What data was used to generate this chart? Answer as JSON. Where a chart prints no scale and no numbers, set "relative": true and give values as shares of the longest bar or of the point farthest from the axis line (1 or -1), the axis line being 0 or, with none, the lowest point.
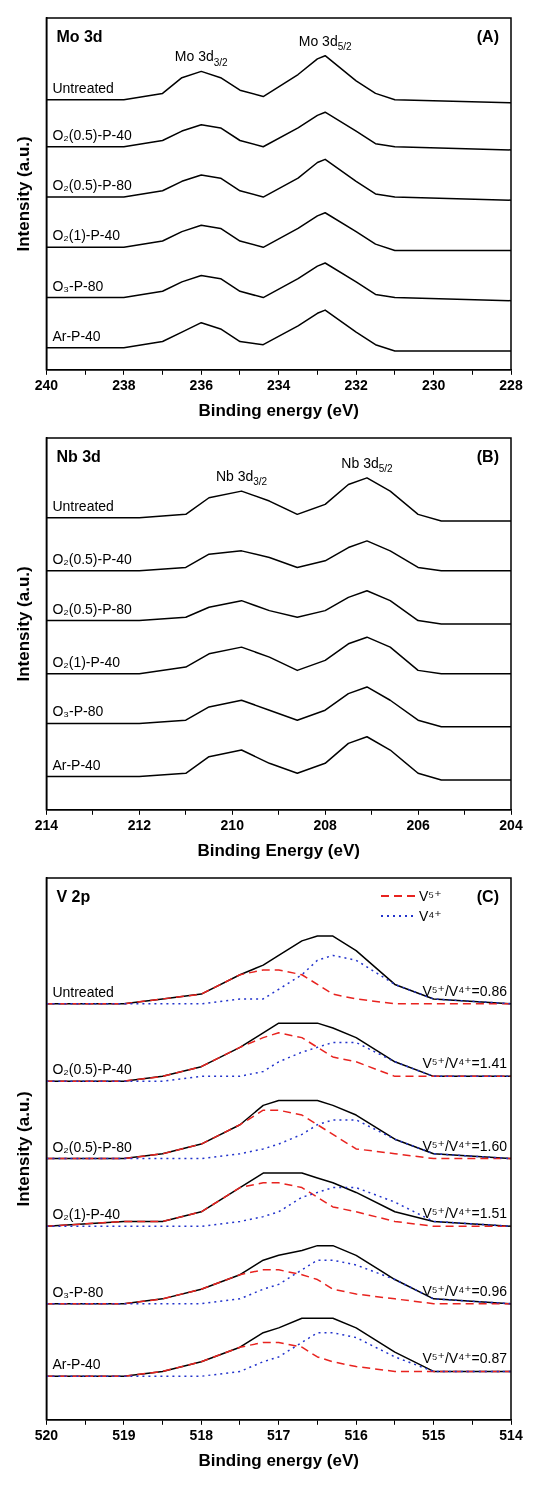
{
  "chart_data": [
    {
      "type": "line",
      "relative": true,
      "title": "Mo 3d",
      "xlabel": "Binding energy (eV)",
      "ylabel": "Intensity (a.u.)",
      "xlim": [
        240,
        228
      ],
      "xticks": [
        240,
        238,
        236,
        234,
        232,
        230,
        228,
        {
          "value": 239,
          "label": null
        },
        {
          "value": 237,
          "label": null
        },
        {
          "value": 235,
          "label": null
        },
        {
          "value": 233,
          "label": null
        },
        {
          "value": 231,
          "label": null
        },
        {
          "value": 229,
          "label": null
        }
      ],
      "x": [
        240,
        238,
        237,
        236.5,
        236,
        235.5,
        235,
        234.4,
        233.5,
        233,
        232.8,
        232,
        231.5,
        231,
        228
      ],
      "annotations": [
        "(A)",
        "Mo 3d$_{3/2}$",
        "Mo 3d$_{5/2}$"
      ],
      "series": [
        {
          "name": "Untreated",
          "color": "#000000",
          "values": [
            0.86,
            0.86,
            0.88,
            0.93,
            0.95,
            0.93,
            0.89,
            0.87,
            0.94,
            0.99,
            1.0,
            0.92,
            0.88,
            0.86,
            0.85
          ]
        },
        {
          "name": "O₂(0.5)-P-40",
          "color": "#000000",
          "values": [
            0.71,
            0.71,
            0.73,
            0.76,
            0.78,
            0.77,
            0.73,
            0.71,
            0.77,
            0.81,
            0.82,
            0.76,
            0.72,
            0.71,
            0.7
          ]
        },
        {
          "name": "O₂(0.5)-P-80",
          "color": "#000000",
          "values": [
            0.55,
            0.55,
            0.57,
            0.6,
            0.62,
            0.61,
            0.57,
            0.55,
            0.61,
            0.66,
            0.67,
            0.6,
            0.56,
            0.55,
            0.54
          ]
        },
        {
          "name": "O₂(1)-P-40",
          "color": "#000000",
          "values": [
            0.39,
            0.39,
            0.41,
            0.44,
            0.46,
            0.45,
            0.41,
            0.39,
            0.45,
            0.49,
            0.5,
            0.44,
            0.4,
            0.38,
            0.38
          ]
        },
        {
          "name": "O₃-P-80",
          "color": "#000000",
          "values": [
            0.23,
            0.23,
            0.25,
            0.28,
            0.3,
            0.29,
            0.25,
            0.23,
            0.29,
            0.33,
            0.34,
            0.28,
            0.24,
            0.23,
            0.22
          ]
        },
        {
          "name": "Ar-P-40",
          "color": "#000000",
          "values": [
            0.07,
            0.07,
            0.09,
            0.12,
            0.15,
            0.13,
            0.09,
            0.08,
            0.14,
            0.18,
            0.19,
            0.12,
            0.08,
            0.06,
            0.06
          ]
        }
      ]
    },
    {
      "type": "line",
      "relative": true,
      "title": "Nb 3d",
      "xlabel": "Binding Energy (eV)",
      "ylabel": "Intensity (a.u.)",
      "xlim": [
        214,
        204
      ],
      "xticks": [
        214,
        212,
        210,
        208,
        206,
        204,
        {
          "value": 213,
          "label": null
        },
        {
          "value": 211,
          "label": null
        },
        {
          "value": 209,
          "label": null
        },
        {
          "value": 207,
          "label": null
        },
        {
          "value": 205,
          "label": null
        }
      ],
      "x": [
        214,
        212,
        211,
        210.5,
        209.8,
        209.2,
        208.6,
        208,
        207.5,
        207.1,
        206.6,
        206,
        205.5,
        204
      ],
      "annotations": [
        "(B)",
        "Nb 3d$_{3/2}$",
        "Nb 3d$_{5/2}$"
      ],
      "series": [
        {
          "name": "Untreated",
          "color": "#000000",
          "values": [
            0.88,
            0.88,
            0.89,
            0.94,
            0.96,
            0.93,
            0.89,
            0.92,
            0.98,
            1.0,
            0.96,
            0.89,
            0.87,
            0.87
          ]
        },
        {
          "name": "O₂(0.5)-P-40",
          "color": "#000000",
          "values": [
            0.72,
            0.72,
            0.73,
            0.77,
            0.78,
            0.76,
            0.73,
            0.75,
            0.79,
            0.81,
            0.78,
            0.73,
            0.72,
            0.72
          ]
        },
        {
          "name": "O₂(0.5)-P-80",
          "color": "#000000",
          "values": [
            0.57,
            0.57,
            0.58,
            0.61,
            0.63,
            0.6,
            0.58,
            0.6,
            0.64,
            0.66,
            0.63,
            0.57,
            0.56,
            0.56
          ]
        },
        {
          "name": "O₂(1)-P-40",
          "color": "#000000",
          "values": [
            0.41,
            0.41,
            0.43,
            0.47,
            0.49,
            0.46,
            0.42,
            0.45,
            0.5,
            0.52,
            0.49,
            0.42,
            0.41,
            0.41
          ]
        },
        {
          "name": "O₃-P-80",
          "color": "#000000",
          "values": [
            0.26,
            0.26,
            0.27,
            0.31,
            0.33,
            0.3,
            0.27,
            0.3,
            0.35,
            0.37,
            0.33,
            0.27,
            0.25,
            0.25
          ]
        },
        {
          "name": "Ar-P-40",
          "color": "#000000",
          "values": [
            0.1,
            0.1,
            0.11,
            0.16,
            0.18,
            0.14,
            0.11,
            0.14,
            0.2,
            0.22,
            0.18,
            0.11,
            0.09,
            0.09
          ]
        }
      ]
    },
    {
      "type": "line",
      "relative": true,
      "title": "V 2p",
      "xlabel": "Binding energy (eV)",
      "ylabel": "Intensity (a.u.)",
      "legend": "top right",
      "xlim": [
        520,
        514
      ],
      "xticks": [
        520,
        519,
        518,
        517,
        516,
        515,
        514,
        {
          "value": 519.5,
          "label": null
        },
        {
          "value": 518.5,
          "label": null
        },
        {
          "value": 517.5,
          "label": null
        },
        {
          "value": 516.5,
          "label": null
        },
        {
          "value": 515.5,
          "label": null
        },
        {
          "value": 514.5,
          "label": null
        }
      ],
      "x": [
        520,
        519,
        518.5,
        518,
        517.5,
        517.2,
        517,
        516.7,
        516.5,
        516.3,
        516,
        515.5,
        515,
        514
      ],
      "annotations": [
        "(C)",
        "V⁵⁺/V⁴⁺=0.86",
        "V⁵⁺/V⁴⁺=1.41",
        "V⁵⁺/V⁴⁺=1.60",
        "V⁵⁺/V⁴⁺=1.51",
        "V⁵⁺/V⁴⁺=0.96",
        "V⁵⁺/V⁴⁺=0.87"
      ],
      "series": [
        {
          "name": "Untreated",
          "color": "#000000",
          "values": [
            0.86,
            0.86,
            0.87,
            0.88,
            0.92,
            0.94,
            0.96,
            0.99,
            1.0,
            1.0,
            0.97,
            0.9,
            0.87,
            0.86
          ]
        },
        {
          "name": "V⁵⁺",
          "color": "#e8231f",
          "line_style": "dashed",
          "values": [
            0.86,
            0.86,
            0.87,
            0.88,
            0.92,
            0.93,
            0.93,
            0.92,
            0.9,
            0.88,
            0.87,
            0.86,
            0.86,
            0.86
          ]
        },
        {
          "name": "V⁴⁺",
          "color": "#2233cc",
          "line_style": "dotted",
          "values": [
            0.86,
            0.86,
            0.86,
            0.86,
            0.87,
            0.87,
            0.89,
            0.92,
            0.95,
            0.96,
            0.95,
            0.9,
            0.87,
            0.86
          ]
        },
        {
          "name": "O₂(0.5)-P-40",
          "color": "#000000",
          "values": [
            0.7,
            0.7,
            0.71,
            0.73,
            0.77,
            0.8,
            0.82,
            0.82,
            0.82,
            0.81,
            0.79,
            0.74,
            0.71,
            0.71
          ]
        },
        {
          "color": "#e8231f",
          "line_style": "dashed",
          "values": [
            0.7,
            0.7,
            0.71,
            0.73,
            0.77,
            0.79,
            0.8,
            0.79,
            0.77,
            0.75,
            0.74,
            0.71,
            0.71,
            0.71
          ]
        },
        {
          "color": "#2233cc",
          "line_style": "dotted",
          "values": [
            0.7,
            0.7,
            0.7,
            0.71,
            0.71,
            0.72,
            0.74,
            0.76,
            0.77,
            0.78,
            0.78,
            0.74,
            0.71,
            0.71
          ]
        },
        {
          "name": "O₂(0.5)-P-80",
          "color": "#000000",
          "values": [
            0.54,
            0.54,
            0.55,
            0.57,
            0.61,
            0.65,
            0.66,
            0.66,
            0.66,
            0.65,
            0.63,
            0.58,
            0.55,
            0.54
          ]
        },
        {
          "color": "#e8231f",
          "line_style": "dashed",
          "values": [
            0.54,
            0.54,
            0.55,
            0.57,
            0.61,
            0.64,
            0.64,
            0.63,
            0.61,
            0.59,
            0.56,
            0.55,
            0.54,
            0.54
          ]
        },
        {
          "color": "#2233cc",
          "line_style": "dotted",
          "values": [
            0.54,
            0.54,
            0.54,
            0.54,
            0.55,
            0.56,
            0.57,
            0.59,
            0.61,
            0.62,
            0.62,
            0.58,
            0.55,
            0.54
          ]
        },
        {
          "name": "O₂(1)-P-40",
          "color": "#000000",
          "values": [
            0.4,
            0.41,
            0.41,
            0.43,
            0.48,
            0.51,
            0.51,
            0.51,
            0.5,
            0.49,
            0.47,
            0.43,
            0.41,
            0.4
          ]
        },
        {
          "color": "#e8231f",
          "line_style": "dashed",
          "values": [
            0.4,
            0.41,
            0.41,
            0.43,
            0.48,
            0.49,
            0.49,
            0.48,
            0.46,
            0.44,
            0.43,
            0.41,
            0.4,
            0.4
          ]
        },
        {
          "color": "#2233cc",
          "line_style": "dotted",
          "values": [
            0.4,
            0.4,
            0.4,
            0.4,
            0.41,
            0.42,
            0.43,
            0.46,
            0.47,
            0.48,
            0.48,
            0.45,
            0.41,
            0.4
          ]
        },
        {
          "name": "O₃-P-80",
          "color": "#000000",
          "values": [
            0.24,
            0.24,
            0.25,
            0.27,
            0.3,
            0.33,
            0.34,
            0.35,
            0.36,
            0.36,
            0.34,
            0.29,
            0.25,
            0.24
          ]
        },
        {
          "color": "#e8231f",
          "line_style": "dashed",
          "values": [
            0.24,
            0.24,
            0.25,
            0.27,
            0.3,
            0.31,
            0.31,
            0.3,
            0.29,
            0.27,
            0.26,
            0.25,
            0.24,
            0.24
          ]
        },
        {
          "color": "#2233cc",
          "line_style": "dotted",
          "values": [
            0.24,
            0.24,
            0.24,
            0.24,
            0.25,
            0.27,
            0.28,
            0.31,
            0.33,
            0.33,
            0.32,
            0.29,
            0.25,
            0.24
          ]
        },
        {
          "name": "Ar-P-40",
          "color": "#000000",
          "values": [
            0.09,
            0.09,
            0.1,
            0.12,
            0.15,
            0.18,
            0.19,
            0.21,
            0.21,
            0.21,
            0.19,
            0.14,
            0.1,
            0.1
          ]
        },
        {
          "color": "#e8231f",
          "line_style": "dashed",
          "values": [
            0.09,
            0.09,
            0.1,
            0.12,
            0.15,
            0.16,
            0.16,
            0.15,
            0.13,
            0.12,
            0.11,
            0.1,
            0.1,
            0.1
          ]
        },
        {
          "color": "#2233cc",
          "line_style": "dotted",
          "values": [
            0.09,
            0.09,
            0.09,
            0.09,
            0.1,
            0.12,
            0.13,
            0.16,
            0.18,
            0.18,
            0.17,
            0.13,
            0.1,
            0.1
          ]
        }
      ]
    }
  ]
}
